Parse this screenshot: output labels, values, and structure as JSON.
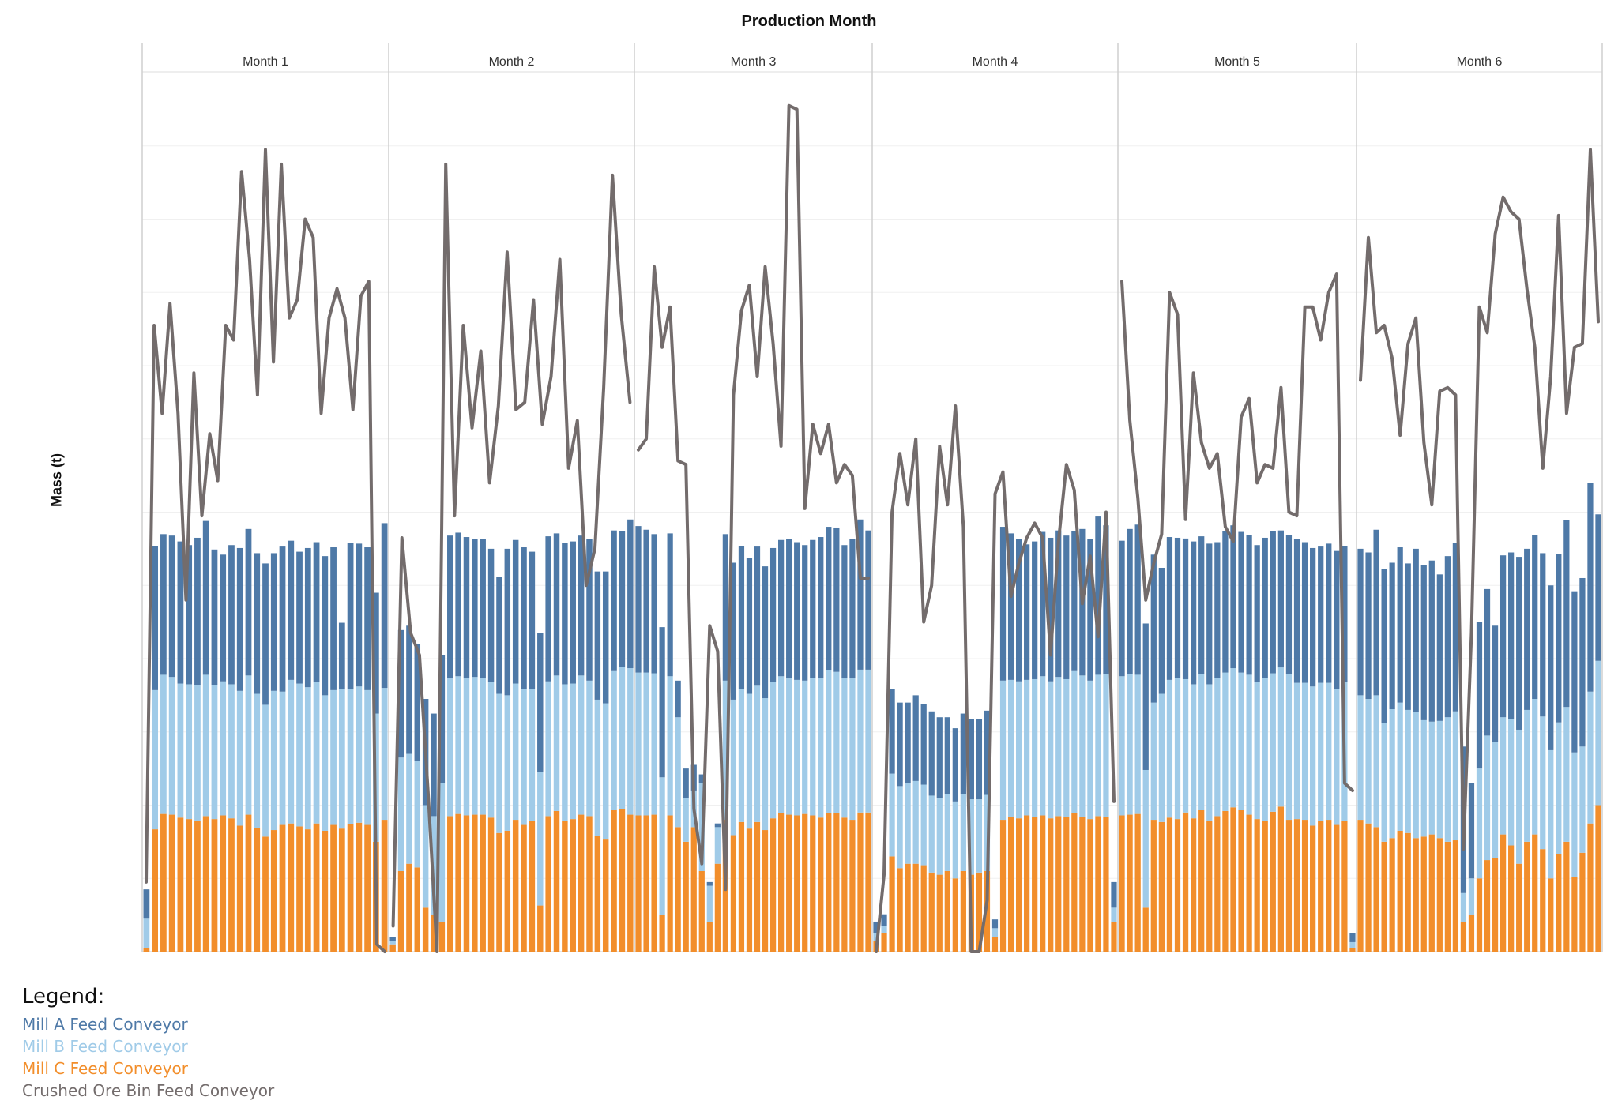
{
  "chart_data": {
    "type": "bar",
    "title": "Production Month",
    "ylabel": "Mass (t)",
    "xlabel": "",
    "y_tick_labels_shown": false,
    "grid": true,
    "ylim": [
      0,
      1200
    ],
    "panels": [
      "Month 1",
      "Month 2",
      "Month 3",
      "Month 4",
      "Month 5",
      "Month 6"
    ],
    "colors": {
      "mill_a": "#4E79A7",
      "mill_b": "#A0CBE8",
      "mill_c": "#F28E2B",
      "crushed": "#736C6C"
    },
    "series": [
      {
        "name": "Mill A Feed Conveyor",
        "kind": "stacked-bar",
        "color": "#4E79A7",
        "months": [
          [
            40,
            197,
            192,
            193,
            194,
            190,
            201,
            210,
            185,
            173,
            190,
            195,
            200,
            192,
            193,
            188,
            198,
            190,
            180,
            190,
            191,
            190,
            195,
            90,
            200,
            195,
            195,
            165,
            225
          ],
          [
            5,
            174,
            175,
            160,
            145,
            140,
            175,
            195,
            196,
            193,
            188,
            190,
            182,
            160,
            200,
            196,
            194,
            187,
            190,
            198,
            194,
            193,
            194,
            191,
            193,
            175,
            180,
            192,
            185,
            203
          ],
          [
            200,
            195,
            190,
            205,
            195,
            50,
            40,
            35,
            12,
            5,
            5,
            200,
            187,
            195,
            185,
            190,
            180,
            183,
            186,
            190,
            188,
            185,
            188,
            193,
            196,
            197,
            182,
            190,
            205,
            190
          ],
          [
            16,
            16,
            115,
            114,
            110,
            117,
            110,
            115,
            110,
            105,
            100,
            110,
            110,
            110,
            115,
            12,
            210,
            200,
            194,
            185,
            188,
            197,
            196,
            200,
            196,
            191,
            200,
            193,
            216,
            203,
            35
          ],
          [
            185,
            198,
            205,
            200,
            202,
            172,
            195,
            191,
            192,
            195,
            188,
            192,
            185,
            193,
            195,
            192,
            191,
            187,
            191,
            194,
            187,
            190,
            196,
            192,
            189,
            186,
            190,
            189,
            186,
            12
          ],
          [
            200,
            200,
            226,
            210,
            200,
            212,
            200,
            223,
            212,
            220,
            200,
            220,
            230,
            200,
            130,
            200,
            200,
            159,
            221,
            228,
            236,
            220,
            224,
            223,
            225,
            230,
            255,
            220,
            230,
            285,
            200
          ]
        ]
      },
      {
        "name": "Mill B Feed Conveyor",
        "kind": "stacked-bar",
        "color": "#A0CBE8",
        "months": [
          [
            40,
            190,
            190,
            188,
            183,
            184,
            185,
            193,
            183,
            183,
            183,
            184,
            190,
            183,
            180,
            190,
            182,
            196,
            195,
            194,
            193,
            185,
            184,
            191,
            184,
            186,
            184,
            175,
            180
          ],
          [
            5,
            155,
            150,
            145,
            140,
            135,
            190,
            188,
            188,
            187,
            188,
            186,
            185,
            190,
            185,
            186,
            185,
            180,
            182,
            184,
            185,
            187,
            185,
            190,
            185,
            186,
            186,
            190,
            194,
            200
          ],
          [
            195,
            195,
            193,
            188,
            190,
            150,
            60,
            50,
            120,
            50,
            50,
            190,
            185,
            182,
            184,
            186,
            180,
            186,
            187,
            186,
            185,
            182,
            188,
            190,
            195,
            193,
            190,
            193,
            195,
            195
          ],
          [
            10,
            10,
            113,
            112,
            110,
            113,
            110,
            105,
            105,
            105,
            105,
            105,
            103,
            100,
            104,
            12,
            190,
            187,
            187,
            185,
            188,
            190,
            187,
            190,
            188,
            194,
            193,
            189,
            193,
            195,
            20
          ],
          [
            190,
            192,
            190,
            188,
            160,
            175,
            188,
            193,
            182,
            183,
            186,
            186,
            189,
            189,
            190,
            188,
            191,
            187,
            196,
            189,
            190,
            199,
            186,
            187,
            190,
            188,
            187,
            185,
            190,
            8
          ],
          [
            170,
            170,
            180,
            162,
            176,
            175,
            168,
            172,
            159,
            154,
            160,
            170,
            176,
            40,
            50,
            150,
            170,
            158,
            160,
            172,
            183,
            180,
            185,
            181,
            175,
            180,
            184,
            170,
            145,
            180,
            197
          ]
        ]
      },
      {
        "name": "Mill C Feed Conveyor",
        "kind": "stacked-bar",
        "color": "#F28E2B",
        "months": [
          [
            5,
            167,
            188,
            187,
            183,
            181,
            179,
            185,
            181,
            186,
            182,
            172,
            187,
            169,
            157,
            166,
            173,
            175,
            171,
            167,
            175,
            165,
            173,
            168,
            174,
            176,
            173,
            150,
            180
          ],
          [
            10,
            110,
            120,
            115,
            60,
            50,
            40,
            185,
            188,
            186,
            187,
            187,
            183,
            162,
            165,
            180,
            173,
            179,
            63,
            185,
            192,
            178,
            181,
            187,
            185,
            158,
            153,
            193,
            195,
            187
          ],
          [
            186,
            186,
            187,
            50,
            186,
            170,
            150,
            170,
            110,
            40,
            120,
            180,
            159,
            177,
            168,
            177,
            166,
            182,
            189,
            187,
            186,
            188,
            186,
            183,
            189,
            189,
            183,
            180,
            190,
            190
          ],
          [
            15,
            25,
            130,
            114,
            120,
            120,
            118,
            108,
            105,
            110,
            100,
            110,
            105,
            108,
            110,
            20,
            180,
            184,
            182,
            186,
            184,
            186,
            182,
            185,
            184,
            189,
            184,
            181,
            185,
            184,
            40
          ],
          [
            186,
            187,
            188,
            60,
            180,
            177,
            183,
            181,
            190,
            182,
            193,
            179,
            185,
            192,
            197,
            193,
            187,
            181,
            178,
            191,
            198,
            180,
            181,
            180,
            172,
            179,
            180,
            173,
            178,
            5
          ],
          [
            180,
            175,
            170,
            150,
            155,
            165,
            162,
            155,
            157,
            160,
            155,
            150,
            152,
            40,
            50,
            100,
            125,
            128,
            160,
            145,
            120,
            150,
            160,
            140,
            100,
            133,
            150,
            102,
            135,
            175,
            200
          ]
        ]
      },
      {
        "name": "Crushed Ore Bin Feed Conveyor",
        "kind": "line",
        "color": "#736C6C",
        "months": [
          [
            95,
            855,
            735,
            885,
            735,
            480,
            790,
            595,
            707,
            643,
            855,
            835,
            1065,
            945,
            760,
            1095,
            805,
            1075,
            865,
            890,
            1000,
            975,
            735,
            865,
            905,
            865,
            740,
            895,
            915,
            10,
            0
          ],
          [
            35,
            565,
            435,
            405,
            215,
            0,
            1075,
            595,
            855,
            715,
            820,
            640,
            745,
            955,
            740,
            750,
            890,
            720,
            785,
            945,
            660,
            725,
            500,
            550,
            770,
            1060,
            870,
            750
          ],
          [
            685,
            700,
            935,
            825,
            880,
            670,
            665,
            195,
            120,
            445,
            410,
            85,
            760,
            875,
            910,
            785,
            935,
            830,
            690,
            1155,
            1150,
            605,
            720,
            680,
            720,
            640,
            665,
            650,
            510,
            510
          ],
          [
            0,
            105,
            600,
            680,
            610,
            700,
            450,
            500,
            690,
            610,
            745,
            580,
            0,
            0,
            70,
            625,
            655,
            485,
            530,
            565,
            585,
            565,
            405,
            560,
            665,
            630,
            475,
            540,
            430,
            600,
            205
          ],
          [
            915,
            725,
            620,
            480,
            530,
            570,
            900,
            870,
            590,
            790,
            695,
            660,
            680,
            580,
            560,
            730,
            755,
            640,
            665,
            660,
            770,
            600,
            595,
            880,
            880,
            835,
            900,
            925,
            230,
            220
          ],
          [
            780,
            975,
            845,
            855,
            810,
            705,
            830,
            865,
            695,
            610,
            765,
            770,
            760,
            140,
            435,
            880,
            845,
            980,
            1030,
            1010,
            1000,
            905,
            825,
            660,
            785,
            1005,
            735,
            825,
            830,
            1095,
            860
          ]
        ]
      }
    ]
  },
  "legend": {
    "title": "Legend:",
    "items": [
      {
        "label": "Mill A Feed Conveyor",
        "color": "#4E79A7"
      },
      {
        "label": "Mill B Feed Conveyor",
        "color": "#A0CBE8"
      },
      {
        "label": "Mill C Feed Conveyor",
        "color": "#F28E2B"
      },
      {
        "label": "Crushed Ore Bin Feed Conveyor",
        "color": "#736C6C"
      }
    ]
  }
}
